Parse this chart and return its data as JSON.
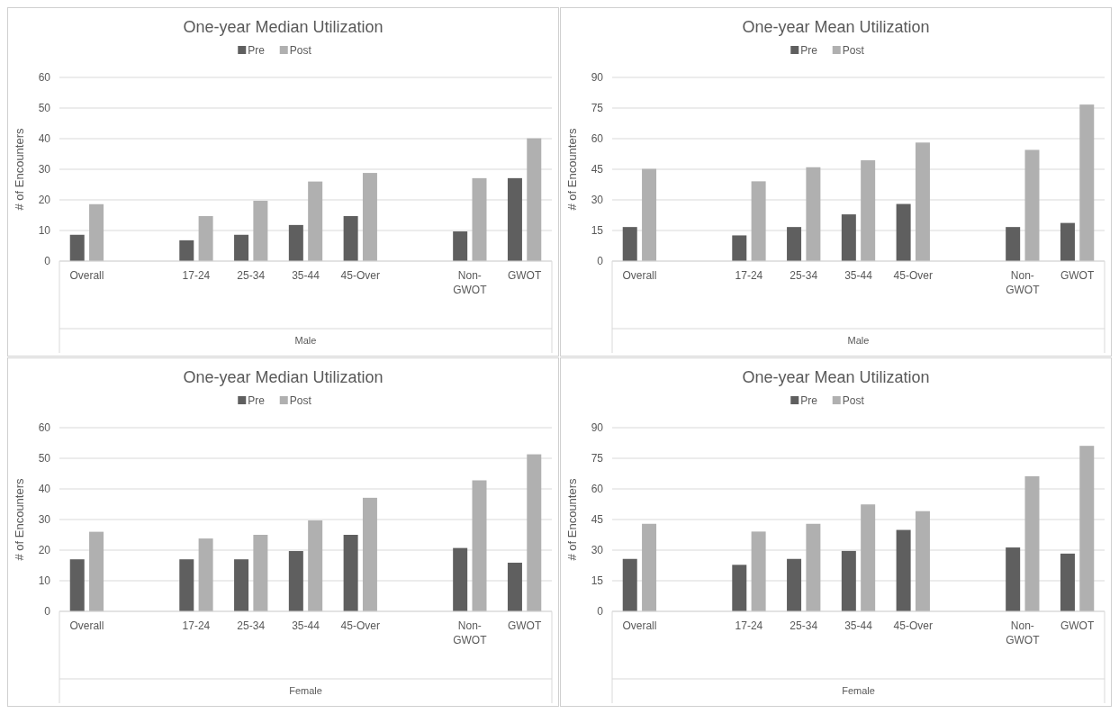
{
  "chart_data": [
    {
      "type": "bar",
      "title": "One-year Median Utilization",
      "xlabel": "Male",
      "ylabel": "# of Encounters",
      "categories": [
        "Overall",
        null,
        "17-24",
        "25-34",
        "35-44",
        "45-Over",
        null,
        "Non-GWOT",
        "GWOT"
      ],
      "series": [
        {
          "name": "Pre",
          "color": "#5f5f5f",
          "values": [
            8.6,
            null,
            6.8,
            8.6,
            11.8,
            14.7,
            null,
            9.7,
            27.1
          ]
        },
        {
          "name": "Post",
          "color": "#b0b0b0",
          "values": [
            18.6,
            null,
            14.7,
            19.7,
            26,
            28.8,
            null,
            27.1,
            40.1
          ]
        }
      ],
      "ylim": [
        0,
        60
      ],
      "yticks": [
        0,
        10,
        20,
        30,
        40,
        50,
        60
      ],
      "grid": "y",
      "legend": "top"
    },
    {
      "type": "bar",
      "title": "One-year Mean Utilization",
      "xlabel": "Male",
      "ylabel": "# of Encounters",
      "categories": [
        "Overall",
        null,
        "17-24",
        "25-34",
        "35-44",
        "45-Over",
        null,
        "Non-GWOT",
        "GWOT"
      ],
      "series": [
        {
          "name": "Pre",
          "color": "#5f5f5f",
          "values": [
            16.7,
            null,
            12.6,
            16.7,
            22.9,
            28,
            null,
            16.7,
            18.7
          ]
        },
        {
          "name": "Post",
          "color": "#b0b0b0",
          "values": [
            45.2,
            null,
            39.1,
            46,
            49.4,
            58.1,
            null,
            54.5,
            76.7
          ]
        }
      ],
      "ylim": [
        0,
        90
      ],
      "yticks": [
        0,
        15,
        30,
        45,
        60,
        75,
        90
      ],
      "grid": "y",
      "legend": "top"
    },
    {
      "type": "bar",
      "title": "One-year Median Utilization",
      "xlabel": "Female",
      "ylabel": "# of Encounters",
      "categories": [
        "Overall",
        null,
        "17-24",
        "25-34",
        "35-44",
        "45-Over",
        null,
        "Non-GWOT",
        "GWOT"
      ],
      "series": [
        {
          "name": "Pre",
          "color": "#5f5f5f",
          "values": [
            17,
            null,
            17,
            17,
            19.7,
            25,
            null,
            20.7,
            15.9
          ]
        },
        {
          "name": "Post",
          "color": "#b0b0b0",
          "values": [
            26,
            null,
            23.8,
            25,
            29.7,
            37.1,
            null,
            42.8,
            51.3
          ]
        }
      ],
      "ylim": [
        0,
        60
      ],
      "yticks": [
        0,
        10,
        20,
        30,
        40,
        50,
        60
      ],
      "grid": "y",
      "legend": "top"
    },
    {
      "type": "bar",
      "title": "One-year Mean Utilization",
      "xlabel": "Female",
      "ylabel": "# of Encounters",
      "categories": [
        "Overall",
        null,
        "17-24",
        "25-34",
        "35-44",
        "45-Over",
        null,
        "Non-GWOT",
        "GWOT"
      ],
      "series": [
        {
          "name": "Pre",
          "color": "#5f5f5f",
          "values": [
            25.7,
            null,
            22.8,
            25.7,
            29.6,
            39.9,
            null,
            31.3,
            28.3
          ]
        },
        {
          "name": "Post",
          "color": "#b0b0b0",
          "values": [
            42.9,
            null,
            39.1,
            42.9,
            52.4,
            49.1,
            null,
            66.2,
            81.1
          ]
        }
      ],
      "ylim": [
        0,
        90
      ],
      "yticks": [
        0,
        15,
        30,
        45,
        60,
        75,
        90
      ],
      "grid": "y",
      "legend": "top"
    }
  ]
}
